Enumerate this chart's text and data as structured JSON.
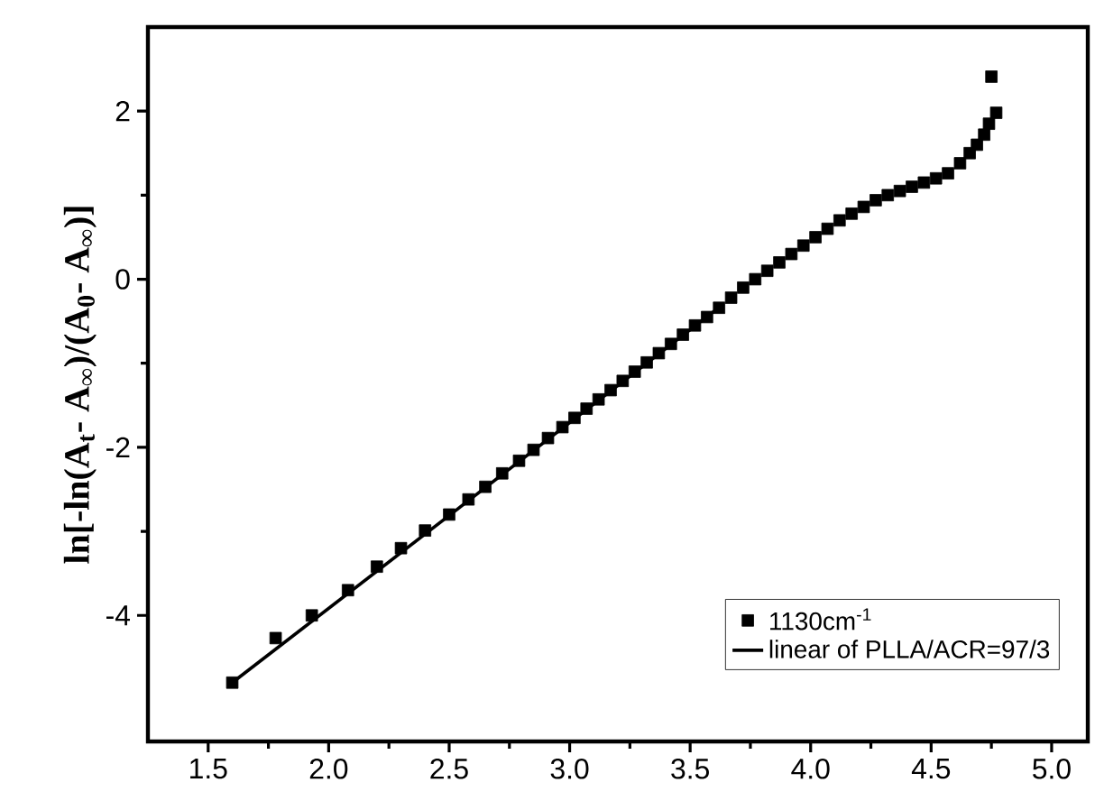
{
  "chart_data": {
    "type": "scatter",
    "ylabel": "**ln[-ln(A$_{t}$- A$_{∞}$)/(A$_{0}$- A$_{∞}$)]**",
    "xlim": [
      1.25,
      5.15
    ],
    "ylim": [
      -5.5,
      3
    ],
    "xticks": [
      1.5,
      {
        "value": 2,
        "label": "2.0"
      },
      2.5,
      {
        "value": 3,
        "label": "3.0"
      },
      3.5,
      {
        "value": 4,
        "label": "4.0"
      },
      4.5,
      {
        "value": 5,
        "label": "5.0"
      }
    ],
    "yticks": [
      -4,
      -2,
      0,
      2
    ],
    "legend": "bottom right",
    "marker": "square",
    "grid": false,
    "series": [
      {
        "name": "1130cm$^{-1}$",
        "color": "#000000",
        "x": [
          1.6,
          1.78,
          1.93,
          2.08,
          2.2,
          2.3,
          2.4,
          2.5,
          2.58,
          2.65,
          2.72,
          2.79,
          2.85,
          2.91,
          2.97,
          3.02,
          3.07,
          3.12,
          3.17,
          3.22,
          3.27,
          3.32,
          3.37,
          3.42,
          3.47,
          3.52,
          3.57,
          3.62,
          3.67,
          3.72,
          3.77,
          3.82,
          3.87,
          3.92,
          3.97,
          4.02,
          4.07,
          4.12,
          4.17,
          4.22,
          4.27,
          4.32,
          4.37,
          4.42,
          4.47,
          4.52,
          4.57,
          4.62,
          4.66,
          4.69,
          4.72,
          4.74,
          4.77,
          4.75
        ],
        "values": [
          -4.8,
          -4.27,
          -4.0,
          -3.7,
          -3.42,
          -3.2,
          -2.99,
          -2.8,
          -2.62,
          -2.47,
          -2.31,
          -2.16,
          -2.03,
          -1.89,
          -1.76,
          -1.65,
          -1.54,
          -1.43,
          -1.32,
          -1.21,
          -1.1,
          -0.99,
          -0.88,
          -0.77,
          -0.66,
          -0.55,
          -0.45,
          -0.34,
          -0.22,
          -0.1,
          0.0,
          0.1,
          0.2,
          0.3,
          0.4,
          0.5,
          0.6,
          0.7,
          0.78,
          0.86,
          0.94,
          1.0,
          1.05,
          1.1,
          1.15,
          1.2,
          1.26,
          1.38,
          1.5,
          1.6,
          1.72,
          1.85,
          1.98,
          2.41
        ]
      },
      {
        "name": "linear of PLLA/ACR=97/3",
        "type": "line",
        "color": "#000000",
        "marker": "none",
        "line_style": "solid",
        "x": [
          1.6,
          3.6
        ],
        "values": [
          -4.8,
          -0.38
        ]
      }
    ]
  }
}
